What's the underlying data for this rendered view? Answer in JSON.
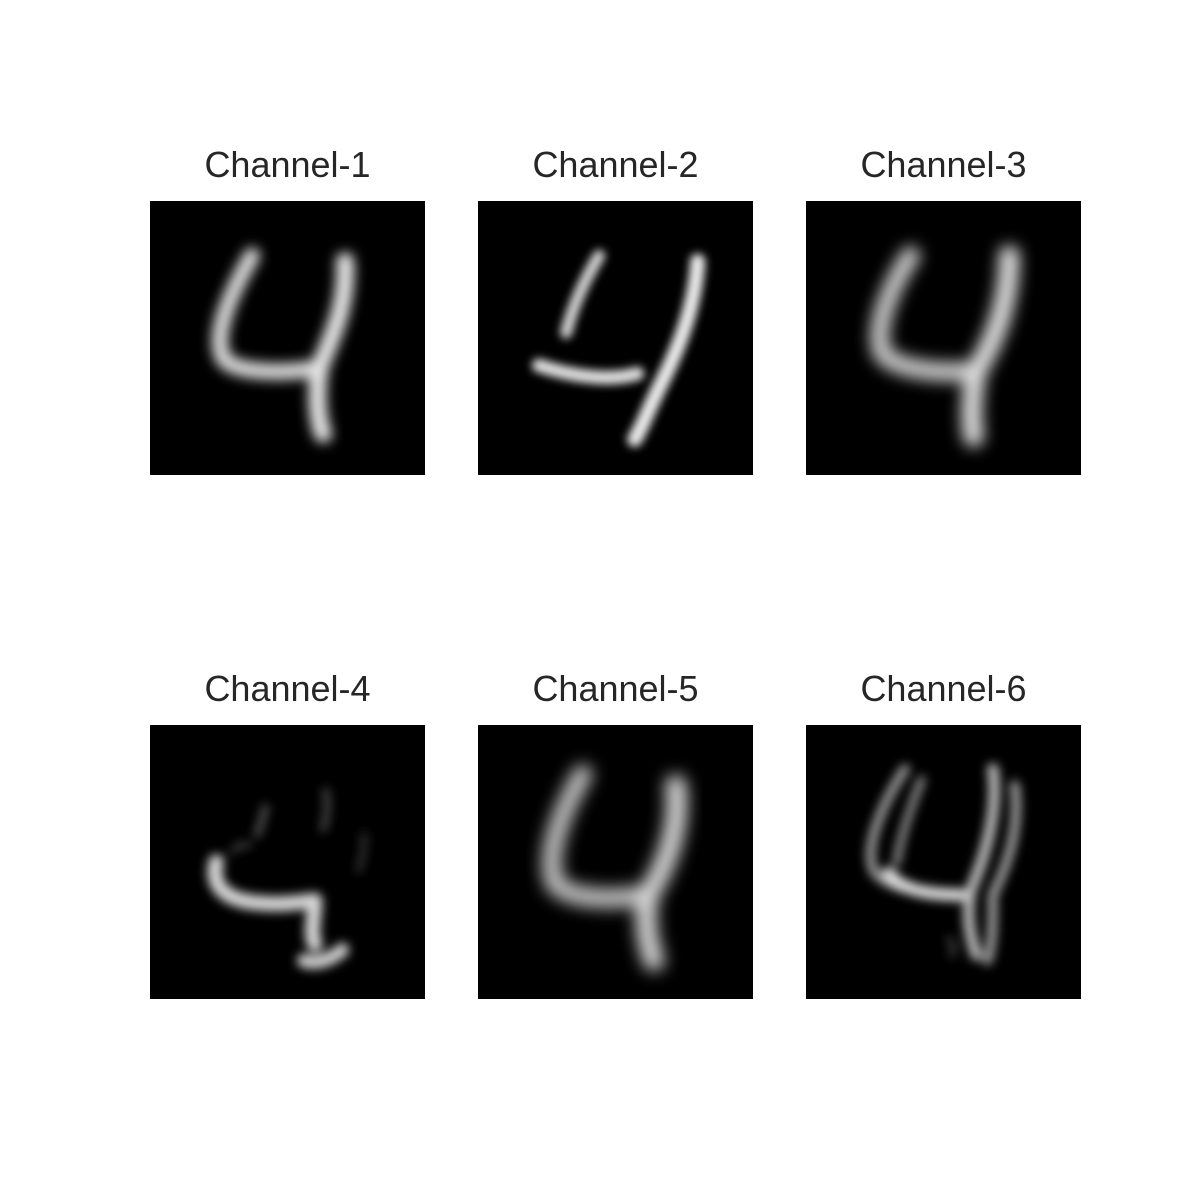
{
  "figure": {
    "panels": [
      {
        "title": "Channel-1",
        "variant": "digit-4-full"
      },
      {
        "title": "Channel-2",
        "variant": "digit-4-strokes"
      },
      {
        "title": "Channel-3",
        "variant": "digit-4-soft"
      },
      {
        "title": "Channel-4",
        "variant": "digit-4-faint"
      },
      {
        "title": "Channel-5",
        "variant": "digit-4-blurred"
      },
      {
        "title": "Channel-6",
        "variant": "digit-4-outline"
      }
    ],
    "background_color": "#ffffff",
    "image_background": "#000000",
    "title_color": "#262626"
  }
}
